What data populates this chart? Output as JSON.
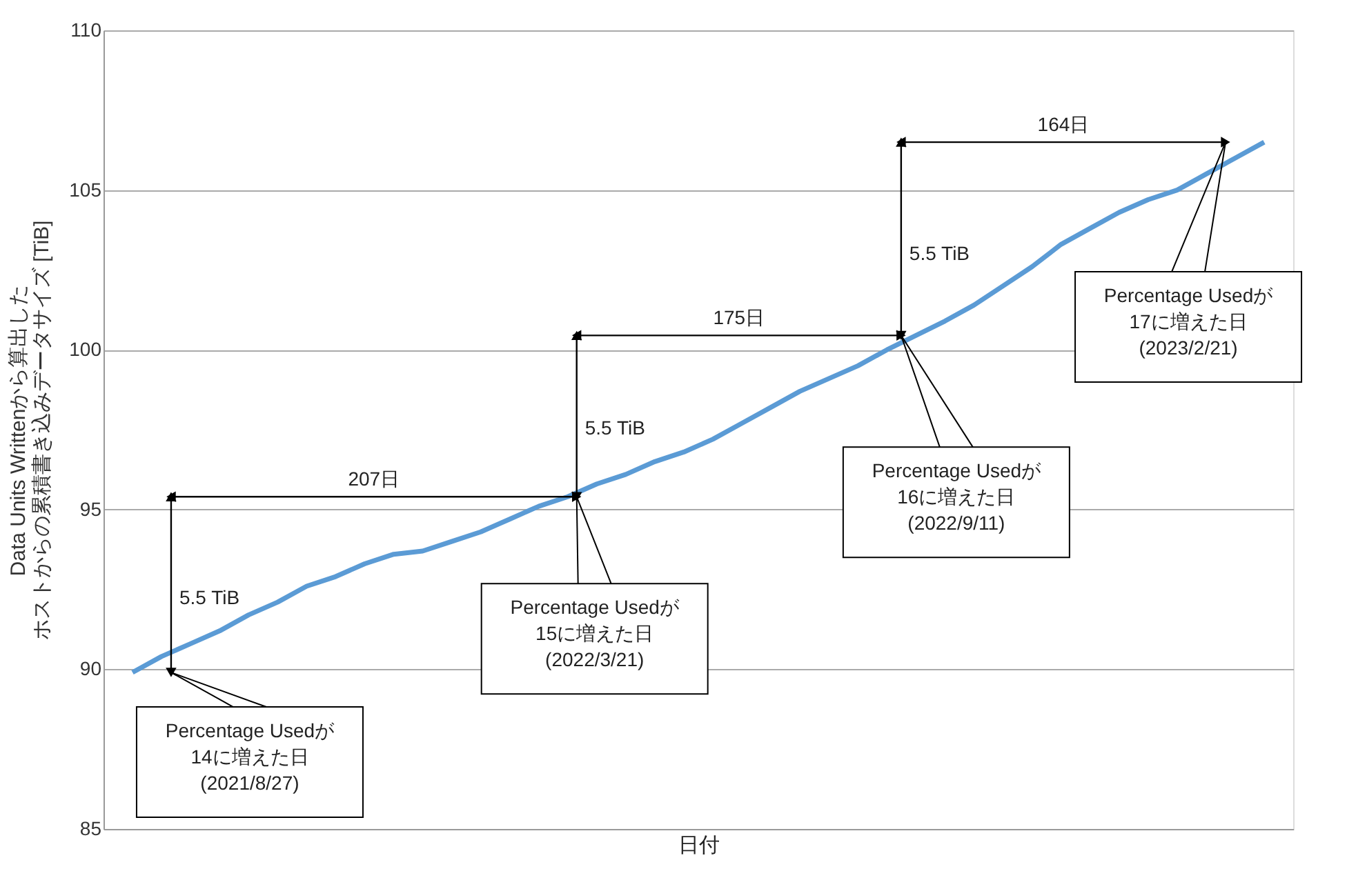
{
  "chart_data": {
    "type": "line",
    "xlabel": "日付",
    "ylabel": [
      "Data Units Writtenから算出した",
      "ホストからの累積書き込みデータサイズ [TiB]"
    ],
    "categories": [
      null,
      null,
      null,
      null,
      null,
      null,
      null,
      null,
      null,
      null,
      null,
      null,
      null,
      null,
      null,
      null,
      null,
      null,
      null,
      null,
      null,
      null,
      null,
      null,
      null,
      null,
      null,
      null,
      null,
      null,
      null,
      null,
      null,
      null,
      null,
      null,
      null,
      null,
      null,
      null
    ],
    "series": [
      {
        "color": "#5b9bd5",
        "values": [
          89.9,
          90.4,
          90.8,
          91.2,
          91.7,
          92.1,
          92.6,
          92.9,
          93.3,
          93.6,
          93.7,
          94.0,
          94.3,
          94.7,
          95.1,
          95.4,
          95.8,
          96.1,
          96.5,
          96.8,
          97.2,
          97.7,
          98.2,
          98.7,
          99.1,
          99.5,
          100.0,
          100.45,
          100.9,
          101.4,
          102.0,
          102.6,
          103.3,
          103.8,
          104.3,
          104.7,
          105.0,
          105.5,
          106.0,
          106.5
        ]
      }
    ],
    "ylim": [
      85,
      110
    ],
    "yticks": [
      85,
      90,
      95,
      100,
      105,
      110
    ],
    "grid": "y",
    "tick_labels": "y",
    "marker": "none",
    "line_style": "solid",
    "annotations": [
      "Percentage Usedが\n14に増えた日\n(2021/8/27)",
      "Percentage Usedが\n15に増えた日\n(2022/3/21)",
      "Percentage Usedが\n16に増えた日\n(2022/9/11)",
      "Percentage Usedが\n17に増えた日\n(2023/2/21)",
      "207日",
      "175日",
      "164日",
      "5.5 TiB",
      "5.5 TiB",
      "5.5 TiB"
    ]
  }
}
